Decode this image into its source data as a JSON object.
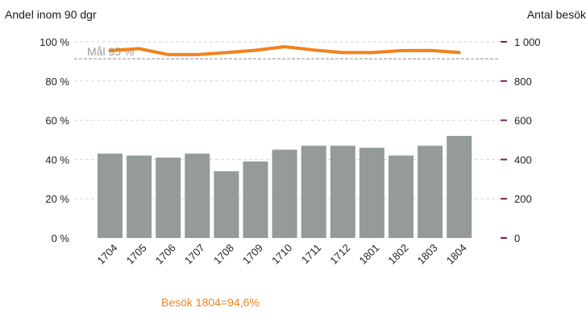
{
  "chart_data": {
    "type": "bar",
    "left_axis_title": "Andel inom 90 dgr",
    "right_axis_title": "Antal besök",
    "categories": [
      "1704",
      "1705",
      "1706",
      "1707",
      "1708",
      "1709",
      "1710",
      "1711",
      "1712",
      "1801",
      "1802",
      "1803",
      "1804"
    ],
    "left_ticks": [
      "0 %",
      "20 %",
      "40 %",
      "60 %",
      "80 %",
      "100 %"
    ],
    "right_ticks": [
      "0",
      "200",
      "400",
      "600",
      "800",
      "1 000"
    ],
    "left_ylim": [
      0,
      100
    ],
    "right_ylim": [
      0,
      1000
    ],
    "series": [
      {
        "type": "bar",
        "axis": "right",
        "color": "#959b97",
        "values": [
          430,
          420,
          410,
          430,
          340,
          390,
          450,
          470,
          470,
          460,
          420,
          470,
          520
        ]
      },
      {
        "type": "line",
        "axis": "left",
        "color": "#f0831e",
        "values": [
          95.5,
          96.5,
          93.5,
          93.5,
          94.5,
          95.7,
          97.5,
          95.8,
          94.5,
          94.5,
          95.5,
          95.6,
          94.6
        ]
      }
    ],
    "goal": {
      "label": "Mål 95 %",
      "value": 95
    },
    "footer_label": "Besök 1804=94,6%",
    "grid": true
  }
}
